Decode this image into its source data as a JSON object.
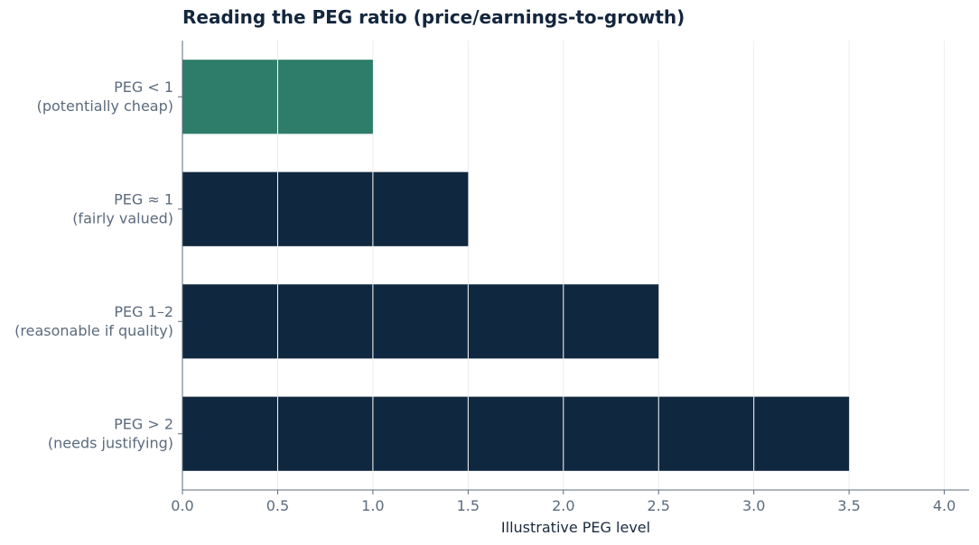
{
  "chart_data": {
    "type": "bar",
    "orientation": "horizontal",
    "title": "Reading the PEG ratio (price/earnings-to-growth)",
    "xlabel": "Illustrative PEG level",
    "ylabel": "",
    "categories": [
      [
        "PEG < 1",
        "(potentially cheap)"
      ],
      [
        "PEG ≈ 1",
        "(fairly valued)"
      ],
      [
        "PEG 1–2",
        "(reasonable if quality)"
      ],
      [
        "PEG > 2",
        "(needs justifying)"
      ]
    ],
    "values": [
      1.0,
      1.5,
      2.5,
      3.5
    ],
    "bar_colors": [
      "#2e7d6b",
      "#10283f",
      "#10283f",
      "#10283f"
    ],
    "xlim": [
      0,
      4.13
    ],
    "xticks": [
      0.0,
      0.5,
      1.0,
      1.5,
      2.0,
      2.5,
      3.0,
      3.5,
      4.0
    ],
    "xtick_labels": [
      "0.0",
      "0.5",
      "1.0",
      "1.5",
      "2.0",
      "2.5",
      "3.0",
      "3.5",
      "4.0"
    ],
    "grid": "vertical",
    "legend": "none"
  },
  "colors": {
    "title": "#13263d",
    "tick_label": "#5b6b7d",
    "axis_label": "#1a2b3f",
    "axis_line": "#5b6b7d",
    "grid": "#ececec",
    "bar_grid_overlay": "#ffffff"
  }
}
